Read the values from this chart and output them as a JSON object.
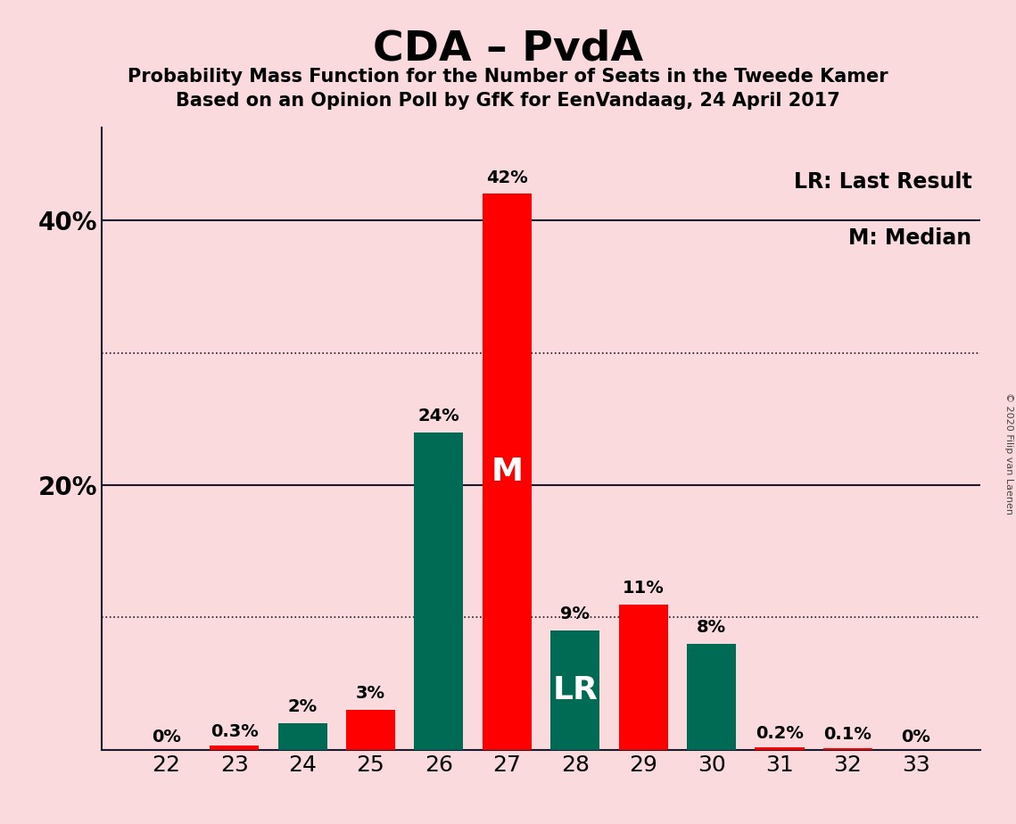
{
  "title": "CDA – PvdA",
  "subtitle1": "Probability Mass Function for the Number of Seats in the Tweede Kamer",
  "subtitle2": "Based on an Opinion Poll by GfK for EenVandaag, 24 April 2017",
  "copyright": "© 2020 Filip van Laenen",
  "legend1": "LR: Last Result",
  "legend2": "M: Median",
  "background_color": "#FADADD",
  "bar_color_red": "#FF0000",
  "bar_color_green": "#006B54",
  "categories": [
    22,
    23,
    24,
    25,
    26,
    27,
    28,
    29,
    30,
    31,
    32,
    33
  ],
  "values": [
    0.0,
    0.3,
    2.0,
    3.0,
    24.0,
    42.0,
    9.0,
    11.0,
    8.0,
    0.2,
    0.1,
    0.0
  ],
  "colors": [
    "red",
    "red",
    "green",
    "red",
    "green",
    "red",
    "green",
    "red",
    "green",
    "red",
    "red",
    "red"
  ],
  "labels": [
    "0%",
    "0.3%",
    "2%",
    "3%",
    "24%",
    "42%",
    "9%",
    "11%",
    "8%",
    "0.2%",
    "0.1%",
    "0%"
  ],
  "bar_labels": [
    "",
    "",
    "",
    "",
    "",
    "M",
    "LR",
    "",
    "",
    "",
    "",
    ""
  ],
  "ylim": [
    0,
    47
  ],
  "yticks": [
    20,
    40
  ],
  "ytick_labels": [
    "20%",
    "40%"
  ],
  "dotted_lines": [
    10,
    30
  ],
  "solid_lines": [
    20,
    40
  ],
  "title_fontsize": 34,
  "subtitle_fontsize": 15,
  "ytick_fontsize": 20,
  "xtick_fontsize": 18,
  "label_fontsize": 14,
  "bar_label_fontsize": 26,
  "legend_fontsize": 17
}
